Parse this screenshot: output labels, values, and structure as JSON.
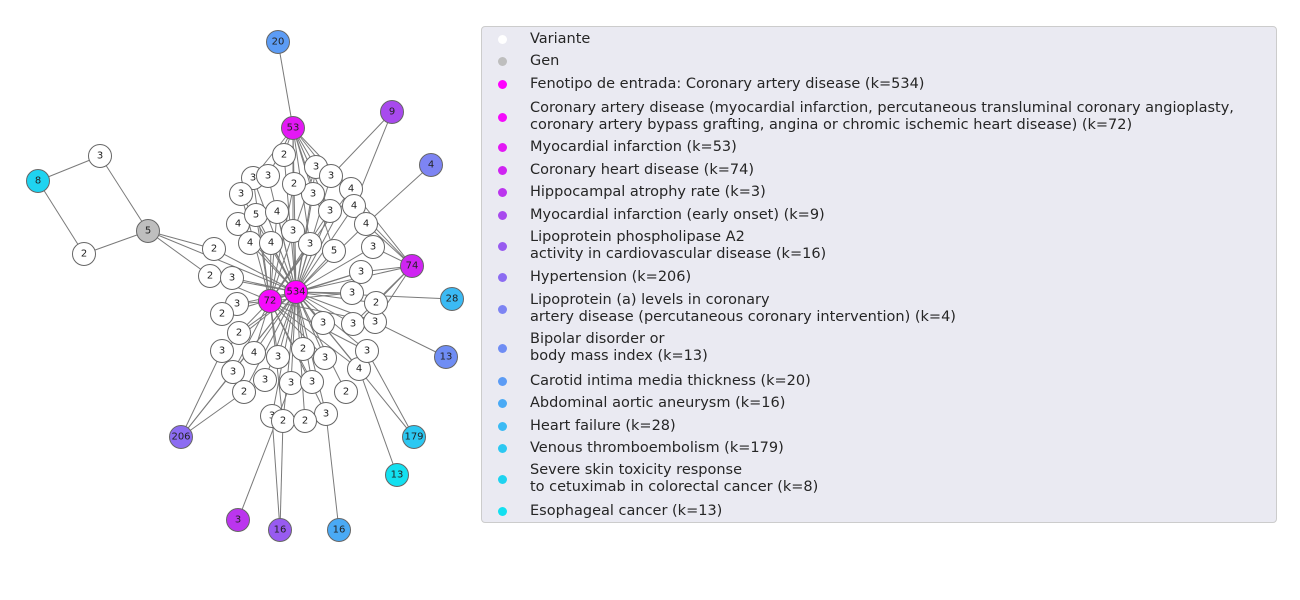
{
  "graph": {
    "node_categories": {
      "variant": {
        "fill": "#ffffff"
      },
      "gene": {
        "fill": "#bebebe"
      }
    },
    "hub_labels": {
      "input": "534",
      "cad72": "72",
      "mi53": "53",
      "chd74": "74",
      "hip3": "3",
      "mie9": "9",
      "lpa16": "16",
      "ht206": "206",
      "lpa4": "4",
      "bmi13": "13",
      "cimt20": "20",
      "aaa16": "16",
      "hf28": "28",
      "vte179": "179",
      "skin8": "8",
      "eso13": "13",
      "gene5": "5"
    },
    "variant_labels": [
      "3",
      "3",
      "3",
      "4",
      "5",
      "4",
      "4",
      "2",
      "3",
      "3",
      "2",
      "3",
      "4",
      "4",
      "3",
      "3",
      "3",
      "5",
      "4",
      "2",
      "2",
      "3",
      "3",
      "2",
      "2",
      "3",
      "3",
      "3",
      "3",
      "3",
      "3",
      "2",
      "3",
      "3",
      "3",
      "4",
      "4",
      "2",
      "3",
      "3",
      "3",
      "2",
      "4",
      "3",
      "3",
      "2",
      "3",
      "3",
      "2",
      "3",
      "2",
      "2",
      "2",
      "2"
    ]
  },
  "legend": {
    "entries": [
      {
        "label": "Variante",
        "color": "#ffffff"
      },
      {
        "label": "Gen",
        "color": "#bebebe"
      },
      {
        "label": "Fenotipo de entrada: Coronary artery disease (k=534)",
        "color": "#ff00ff"
      },
      {
        "label": "Coronary artery disease (myocardial infarction, percutaneous transluminal coronary angioplasty,\ncoronary artery bypass grafting, angina or chromic ischemic heart disease) (k=72)",
        "color": "#f50bfc"
      },
      {
        "label": "Myocardial infarction (k=53)",
        "color": "#e318f5"
      },
      {
        "label": "Coronary heart disease (k=74)",
        "color": "#cf24f2"
      },
      {
        "label": "Hippocampal atrophy rate (k=3)",
        "color": "#bb35ee"
      },
      {
        "label": "Myocardial infarction (early onset) (k=9)",
        "color": "#a84aee"
      },
      {
        "label": "Lipoprotein phospholipase A2\nactivity in cardiovascular disease (k=16)",
        "color": "#985bf0"
      },
      {
        "label": "Hypertension (k=206)",
        "color": "#8c6cf2"
      },
      {
        "label": "Lipoprotein (a) levels in coronary\nartery disease (percutaneous coronary intervention) (k=4)",
        "color": "#7d84f3"
      },
      {
        "label": "Bipolar disorder or\nbody mass index (k=13)",
        "color": "#6f8df4"
      },
      {
        "label": "Carotid intima media thickness (k=20)",
        "color": "#5c9cf5"
      },
      {
        "label": "Abdominal aortic aneurysm (k=16)",
        "color": "#4aaaf5"
      },
      {
        "label": "Heart failure (k=28)",
        "color": "#3bbaf4"
      },
      {
        "label": "Venous thromboembolism (k=179)",
        "color": "#2cc8f2"
      },
      {
        "label": "Severe skin toxicity response\nto cetuximab in colorectal cancer (k=8)",
        "color": "#1fd3f0"
      },
      {
        "label": "Esophageal cancer (k=13)",
        "color": "#13e0f0"
      }
    ]
  }
}
